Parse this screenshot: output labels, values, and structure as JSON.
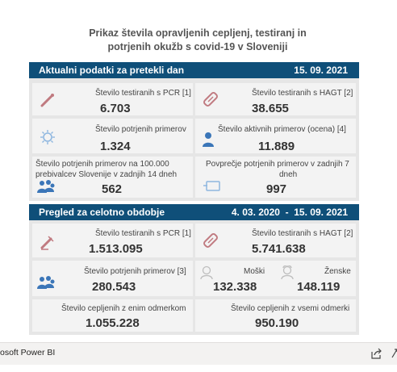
{
  "title": {
    "line1": "Prikaz števila opravljenih cepljenj, testiranj in",
    "line2": "potrjenih okužb s covid-19 v Sloveniji"
  },
  "current": {
    "header_left": "Aktualni podatki za pretekli dan",
    "header_right": "15. 09. 2021",
    "pcr_label": "Število testiranih s PCR [1]",
    "pcr_value": "6.703",
    "hagt_label": "Število testiranih s HAGT [2]",
    "hagt_value": "38.655",
    "confirmed_label": "Število potrjenih primerov",
    "confirmed_value": "1.324",
    "active_label": "Število aktivnih primerov (ocena) [4]",
    "active_value": "11.889",
    "per100k_label_1": "Število potrjenih primerov na 100.000",
    "per100k_label_2": "prebivalcev Slovenije v zadnjih 14 dneh",
    "per100k_value": "562",
    "avg7_label_1": "Povprečje potrjenih primerov v zadnjih 7",
    "avg7_label_2": "dneh",
    "avg7_value": "997"
  },
  "overall": {
    "header_left": "Pregled za celotno obdobje",
    "header_right": "4. 03. 2020  -  15. 09. 2021",
    "pcr_label": "Število testiranih s PCR [1]",
    "pcr_value": "1.513.095",
    "hagt_label": "Število testiranih s HAGT [2]",
    "hagt_value": "5.741.638",
    "confirmed_label": "Število potrjenih primerov [3]",
    "confirmed_value": "280.543",
    "male_label": "Moški",
    "male_value": "132.338",
    "female_label": "Ženske",
    "female_value": "148.119",
    "one_dose_label": "Število cepljenih z enim odmerkom",
    "one_dose_value": "1.055.228",
    "all_doses_label": "Število cepljenih z vsemi odmerki",
    "all_doses_value": "950.190"
  },
  "footer": {
    "brand": "osoft Power BI"
  },
  "colors": {
    "header": "#0f4f79",
    "icon_red": "#c07a80",
    "icon_blue": "#3b76b8",
    "icon_lightblue": "#8fb7e0"
  },
  "icons": [
    "pcr-test-tube-icon",
    "hagt-test-icon",
    "virus-icon",
    "person-icon",
    "people-icon",
    "tablet-icon",
    "male-icon",
    "female-icon",
    "share-icon",
    "expand-icon"
  ]
}
